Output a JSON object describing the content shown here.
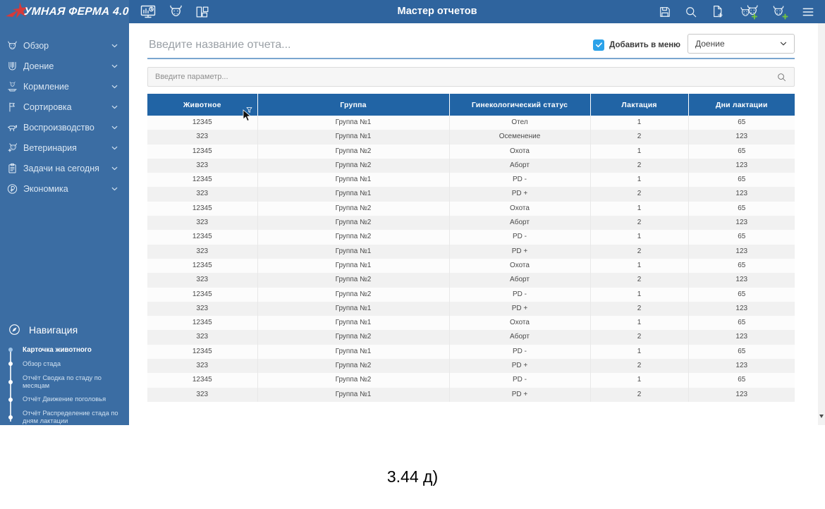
{
  "header": {
    "logo_text": "УМНАЯ ФЕРМА 4.0",
    "title": "Мастер отчетов",
    "left_icons": [
      "dashboard-icon",
      "cow-icon",
      "layout-icon"
    ],
    "right_icons": [
      "save-icon",
      "search-icon",
      "file-add-icon",
      "herd-add-icon",
      "cow-add-icon",
      "menu-icon"
    ]
  },
  "sidebar": {
    "items": [
      {
        "label": "Обзор",
        "icon": "cow-icon"
      },
      {
        "label": "Доение",
        "icon": "udder-icon"
      },
      {
        "label": "Кормление",
        "icon": "feeding-icon"
      },
      {
        "label": "Сортировка",
        "icon": "flag-icon"
      },
      {
        "label": "Воспроизводство",
        "icon": "bull-icon"
      },
      {
        "label": "Ветеринария",
        "icon": "vet-cow-icon"
      },
      {
        "label": "Задачи на сегодня",
        "icon": "clipboard-icon"
      },
      {
        "label": "Экономика",
        "icon": "ruble-icon"
      }
    ],
    "nav": {
      "title": "Навигация",
      "icon": "compass-icon",
      "links": [
        "Карточка животного",
        "Обзор стада",
        "Отчёт Сводка по стаду по месяцам",
        "Отчёт Движение поголовья",
        "Отчёт Распределение стада по дням лактации"
      ]
    }
  },
  "toolbar": {
    "report_name_placeholder": "Введите название отчета...",
    "add_to_menu_label": "Добавить в меню",
    "add_to_menu_checked": true,
    "menu_select_value": "Доение"
  },
  "search": {
    "placeholder": "Введите параметр...",
    "icon": "search-icon"
  },
  "table": {
    "columns": [
      "Животное",
      "Группа",
      "Гинекологический статус",
      "Лактация",
      "Дни лактации"
    ],
    "filter_icon_column": "Животное",
    "rows": [
      [
        "12345",
        "Группа №1",
        "Отел",
        "1",
        "65"
      ],
      [
        "323",
        "Группа №1",
        "Осеменение",
        "2",
        "123"
      ],
      [
        "12345",
        "Группа №2",
        "Охота",
        "1",
        "65"
      ],
      [
        "323",
        "Группа №2",
        "Аборт",
        "2",
        "123"
      ],
      [
        "12345",
        "Группа №1",
        "PD -",
        "1",
        "65"
      ],
      [
        "323",
        "Группа №1",
        "PD +",
        "2",
        "123"
      ],
      [
        "12345",
        "Группа №2",
        "Охота",
        "1",
        "65"
      ],
      [
        "323",
        "Группа №2",
        "Аборт",
        "2",
        "123"
      ],
      [
        "12345",
        "Группа №2",
        "PD -",
        "1",
        "65"
      ],
      [
        "323",
        "Группа №1",
        "PD +",
        "2",
        "123"
      ],
      [
        "12345",
        "Группа №1",
        "Охота",
        "1",
        "65"
      ],
      [
        "323",
        "Группа №2",
        "Аборт",
        "2",
        "123"
      ],
      [
        "12345",
        "Группа №2",
        "PD -",
        "1",
        "65"
      ],
      [
        "323",
        "Группа №1",
        "PD +",
        "2",
        "123"
      ],
      [
        "12345",
        "Группа №1",
        "Охота",
        "1",
        "65"
      ],
      [
        "323",
        "Группа №2",
        "Аборт",
        "2",
        "123"
      ],
      [
        "12345",
        "Группа №1",
        "PD -",
        "1",
        "65"
      ],
      [
        "323",
        "Группа №2",
        "PD +",
        "2",
        "123"
      ],
      [
        "12345",
        "Группа №2",
        "PD -",
        "1",
        "65"
      ],
      [
        "323",
        "Группа №1",
        "PD +",
        "2",
        "123"
      ]
    ]
  },
  "caption": {
    "text": "3.44 д)"
  },
  "colors": {
    "header_blue": "#2f649e",
    "sidebar_blue": "#3b6da3",
    "table_header_blue": "#2164a5",
    "checkbox_blue": "#2ba2e9",
    "plus_green": "#72c242",
    "logo_red": "#d63a3a",
    "underline_blue": "#7aa6cf"
  }
}
